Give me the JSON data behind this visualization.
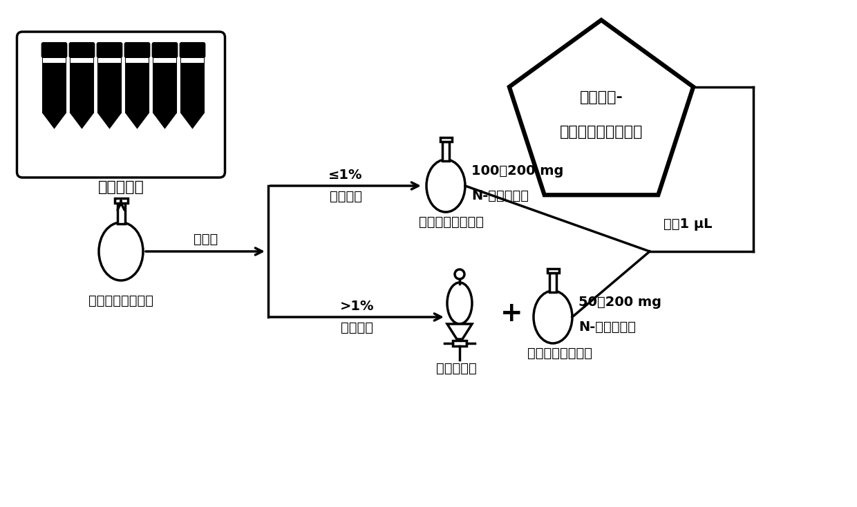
{
  "bg_color": "#ffffff",
  "lc": "#000000",
  "tube_label": "超声波萃取",
  "flask_label": "浓缩和脂含量测定",
  "fat_label": "脂含量",
  "step1_cond": "≤1%",
  "step1_name": "一步净化",
  "step1_process": "分散固相萃取净化",
  "step1_flask_label1": "100～200 mg",
  "step1_flask_label2": "N-丙基乙二胺",
  "step2_cond": ">1%",
  "step2_name": "两步净化",
  "step2_acid_label": "浓硫酸净化",
  "step2_process": "分散固相萃取净化",
  "step2_flask_label1": "50～200 mg",
  "step2_flask_label2": "N-丙基乙二胺",
  "inject_label": "进样1 μL",
  "gc_line1": "气相色谱-",
  "gc_line2": "电子捕获检测器检测",
  "lw": 2.5,
  "pent_lw": 4.5,
  "fs_main": 16,
  "fs_label": 14,
  "fs_gc": 16
}
